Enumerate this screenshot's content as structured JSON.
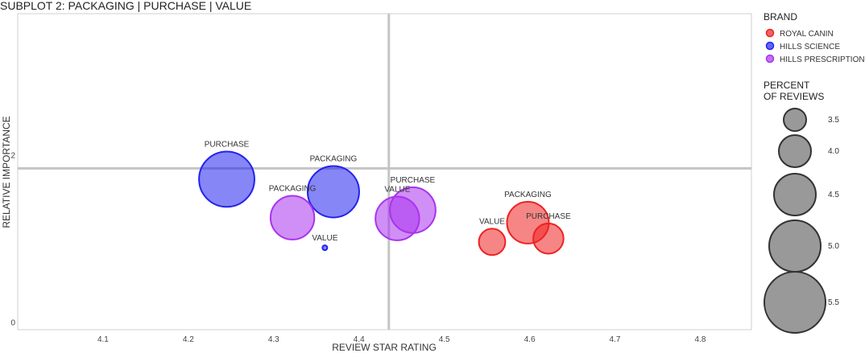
{
  "chart_data": {
    "type": "scatter",
    "title": "SUBPLOT 2: PACKAGING | PURCHASE | VALUE",
    "xlabel": "REVIEW STAR RATING",
    "ylabel": "RELATIVE IMPORTANCE",
    "xlim": [
      4.0,
      4.86
    ],
    "ylim": [
      -0.08,
      3.7
    ],
    "x_ticks": [
      "4.1",
      "4.2",
      "4.3",
      "4.4",
      "4.5",
      "4.6",
      "4.7",
      "4.8"
    ],
    "y_ticks": [
      "0",
      "2"
    ],
    "reference_lines": {
      "x": 4.435,
      "y": 1.85
    },
    "grid": false,
    "legend_placement": "right",
    "color_legend": {
      "title": "BRAND",
      "entries": [
        {
          "name": "ROYAL CANIN",
          "color": "#ee2222"
        },
        {
          "name": "HILLS SCIENCE",
          "color": "#2222ee"
        },
        {
          "name": "HILLS PRESCRIPTION",
          "color": "#aa33ee"
        }
      ]
    },
    "size_legend": {
      "title_line1": "PERCENT",
      "title_line2": "OF REVIEWS",
      "entries": [
        "3.5",
        "4.0",
        "4.5",
        "5.0",
        "5.5"
      ],
      "values": [
        3.5,
        4.0,
        4.5,
        5.0,
        5.5
      ]
    },
    "points": [
      {
        "brand": "HILLS SCIENCE",
        "label": "PURCHASE",
        "x": 4.245,
        "y": 1.72,
        "size": 5.2
      },
      {
        "brand": "HILLS SCIENCE",
        "label": "PACKAGING",
        "x": 4.37,
        "y": 1.57,
        "size": 5.0
      },
      {
        "brand": "HILLS SCIENCE",
        "label": "VALUE",
        "x": 4.36,
        "y": 0.9,
        "size": 2.5
      },
      {
        "brand": "HILLS PRESCRIPTION",
        "label": "PACKAGING",
        "x": 4.322,
        "y": 1.26,
        "size": 4.6
      },
      {
        "brand": "HILLS PRESCRIPTION",
        "label": "VALUE",
        "x": 4.445,
        "y": 1.25,
        "size": 4.6
      },
      {
        "brand": "HILLS PRESCRIPTION",
        "label": "PURCHASE",
        "x": 4.463,
        "y": 1.35,
        "size": 4.7
      },
      {
        "brand": "ROYAL CANIN",
        "label": "PACKAGING",
        "x": 4.598,
        "y": 1.2,
        "size": 4.5
      },
      {
        "brand": "ROYAL CANIN",
        "label": "PURCHASE",
        "x": 4.622,
        "y": 1.01,
        "size": 3.9
      },
      {
        "brand": "ROYAL CANIN",
        "label": "VALUE",
        "x": 4.556,
        "y": 0.97,
        "size": 3.7
      }
    ]
  }
}
